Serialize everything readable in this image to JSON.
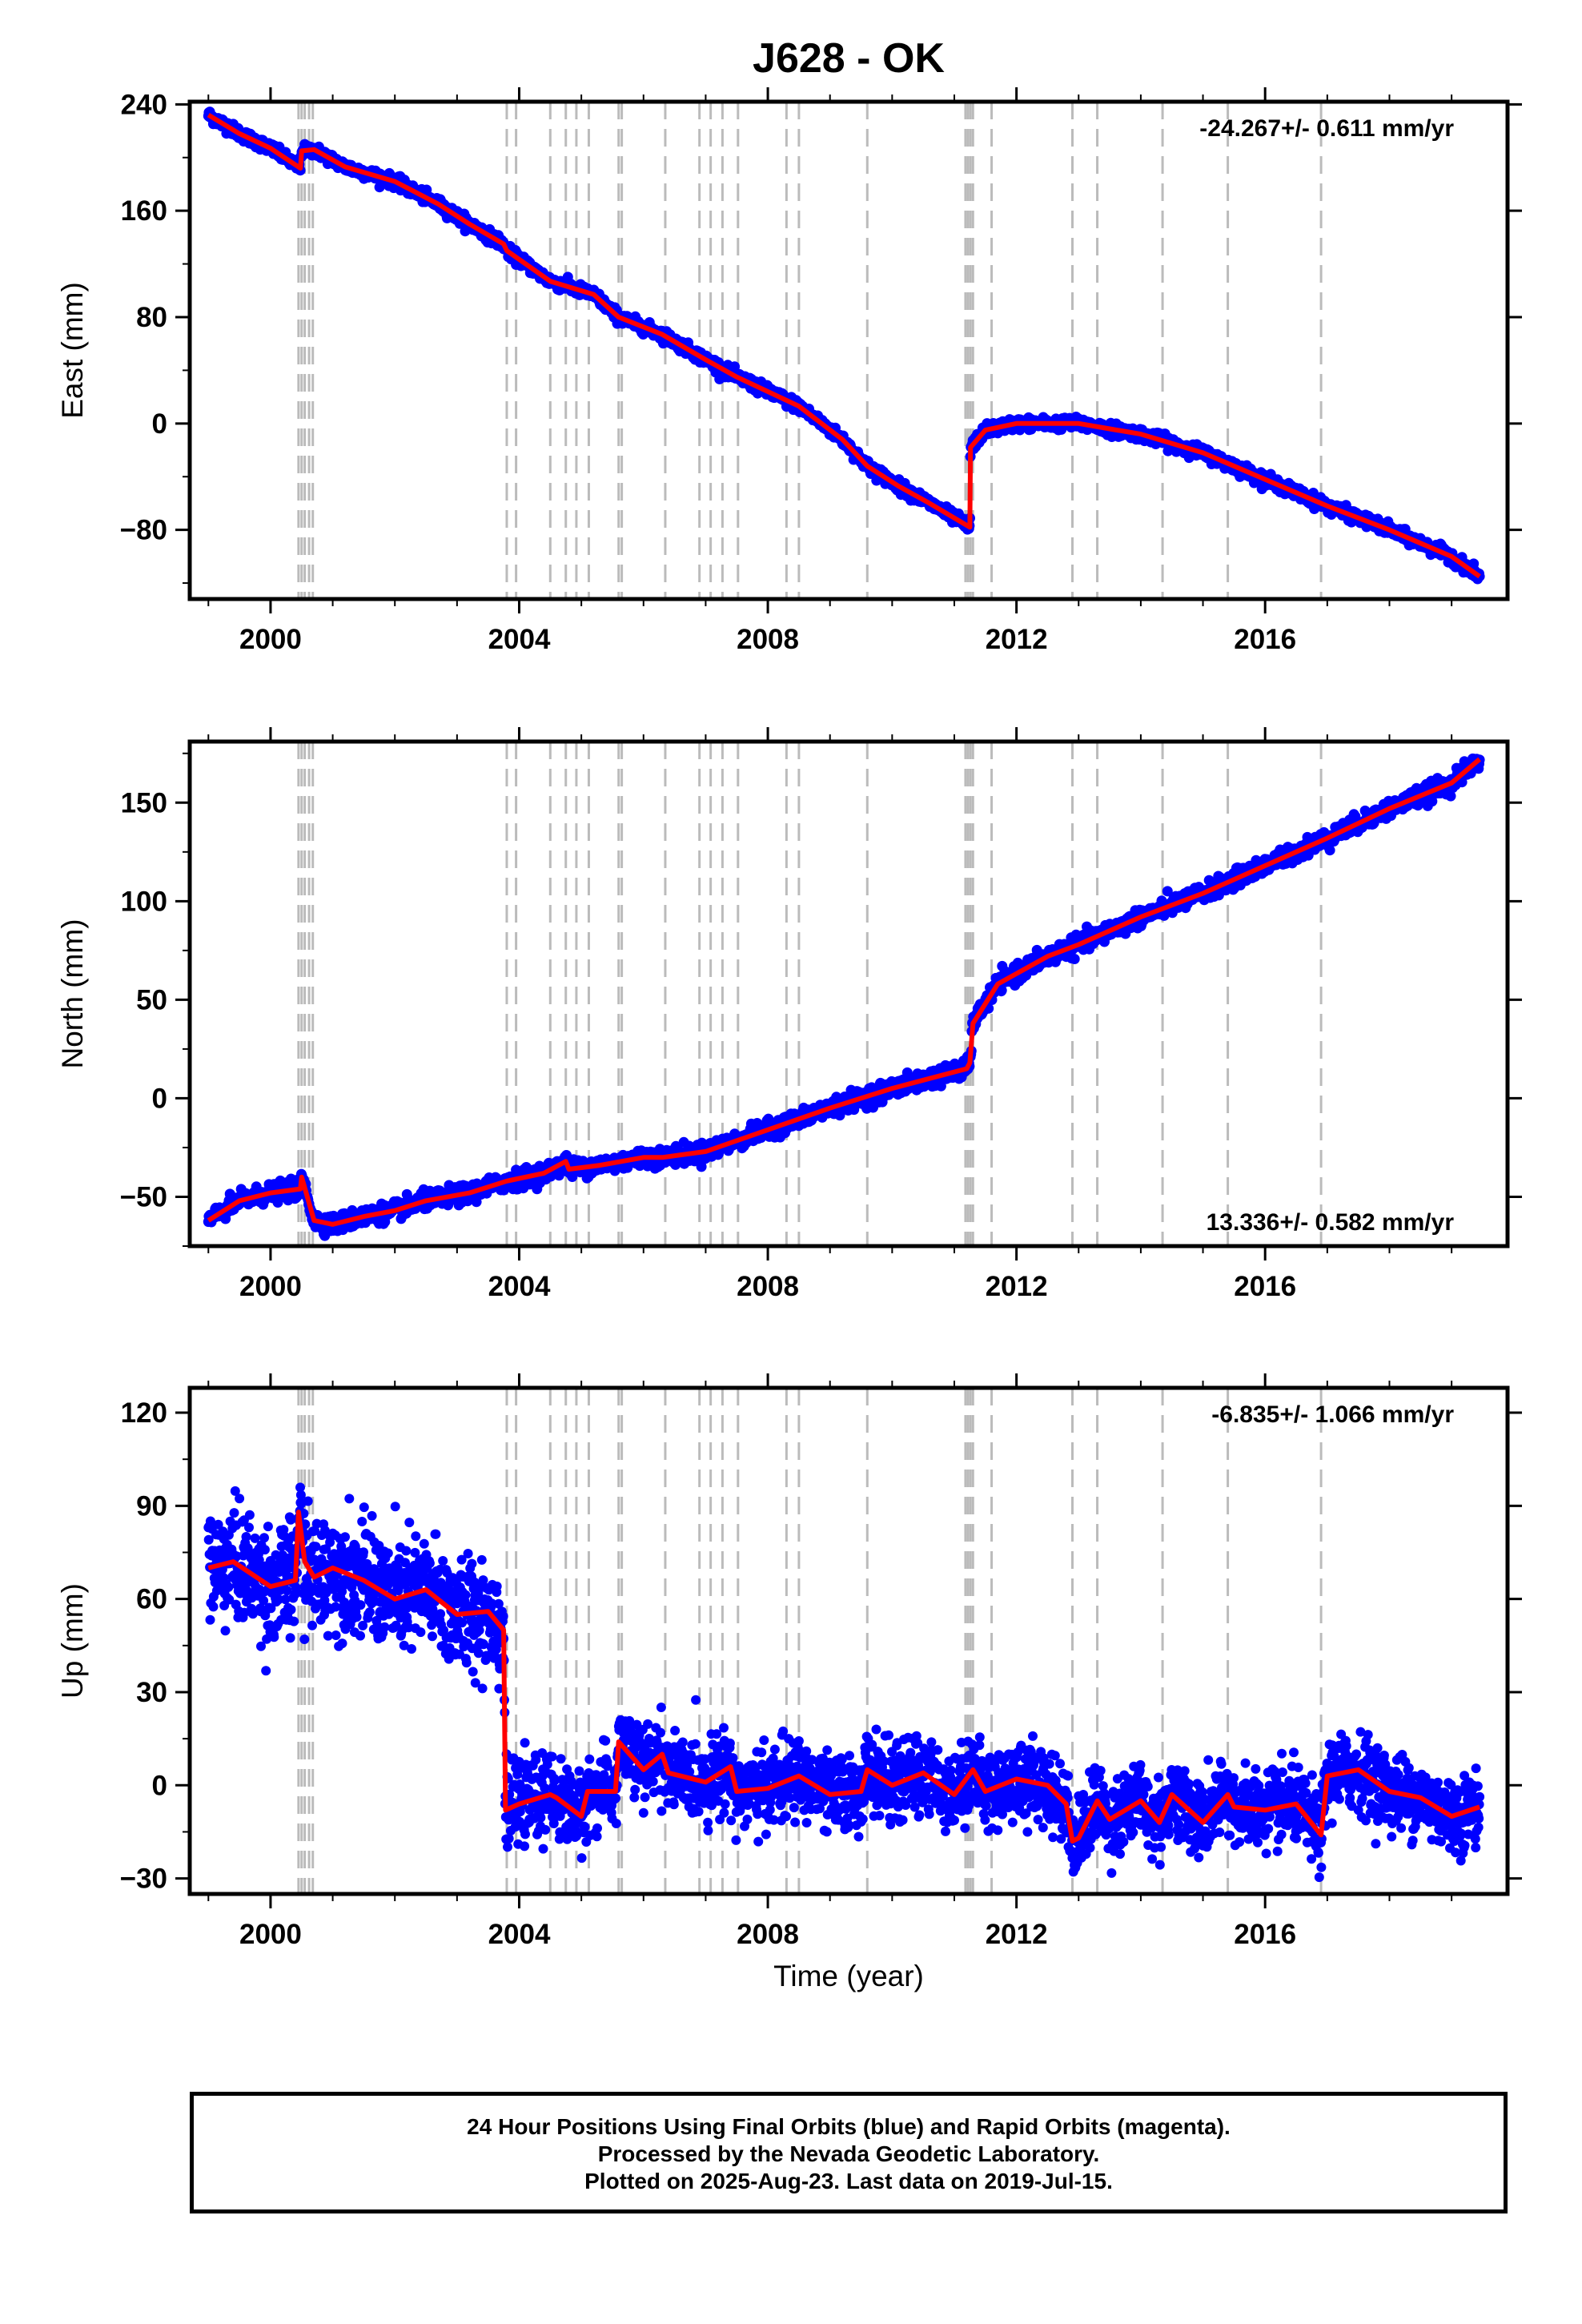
{
  "title": "J628 - OK",
  "xlabel": "Time (year)",
  "footer": {
    "line1": "24 Hour Positions Using Final Orbits (blue) and Rapid Orbits (magenta).",
    "line2": "Processed by the Nevada Geodetic Laboratory.",
    "line3": "Plotted on 2025-Aug-23. Last data on 2019-Jul-15."
  },
  "colors": {
    "final": "#0000ff",
    "rapid": "#ff00ff",
    "model": "#ff0000",
    "event_lines": "#bbbbbb"
  },
  "chart_data": [
    {
      "type": "scatter",
      "component": "East",
      "ylabel": "East (mm)",
      "rate_label": "-24.267+/- 0.611 mm/yr",
      "rate_position": "top-right",
      "xlim": [
        1998.7,
        2019.9
      ],
      "ylim": [
        -132,
        242
      ],
      "yticks": [
        -80,
        0,
        80,
        160,
        240
      ],
      "yticklabels": [
        "−80",
        "0",
        "80",
        "160",
        "240"
      ],
      "xticks": [
        2000,
        2004,
        2008,
        2012,
        2016
      ],
      "model_series": {
        "name": "model",
        "x": [
          1999.0,
          1999.5,
          2000.0,
          2000.48,
          2000.5,
          2000.7,
          2001.2,
          2002.0,
          2002.7,
          2003.2,
          2003.75,
          2003.8,
          2004.5,
          2005.2,
          2005.6,
          2006.3,
          2007.0,
          2007.5,
          2008.5,
          2009.2,
          2009.6,
          2010.1,
          2010.6,
          2011.25,
          2011.26,
          2011.5,
          2012.0,
          2012.5,
          2013.0,
          2013.5,
          2014.0,
          2015.0,
          2016.0,
          2017.0,
          2018.0,
          2019.0,
          2019.45
        ],
        "y": [
          232,
          218,
          207,
          192,
          205,
          206,
          193,
          182,
          165,
          150,
          135,
          130,
          107,
          97,
          80,
          67,
          48,
          35,
          13,
          -12,
          -32,
          -47,
          -60,
          -78,
          -18,
          -5,
          0,
          0,
          0,
          -4,
          -8,
          -22,
          -42,
          -62,
          -80,
          -100,
          -115
        ]
      },
      "final_orbits": {
        "name": "Final Orbits",
        "color": "#0000ff"
      }
    },
    {
      "type": "scatter",
      "component": "North",
      "ylabel": "North (mm)",
      "rate_label": "13.336+/- 0.582 mm/yr",
      "rate_position": "bottom-right",
      "xlim": [
        1998.7,
        2019.9
      ],
      "ylim": [
        -75,
        181
      ],
      "yticks": [
        -50,
        0,
        50,
        100,
        150
      ],
      "yticklabels": [
        "−50",
        "0",
        "50",
        "100",
        "150"
      ],
      "xticks": [
        2000,
        2004,
        2008,
        2012,
        2016
      ],
      "model_series": {
        "name": "model",
        "x": [
          1999.0,
          1999.5,
          2000.0,
          2000.48,
          2000.5,
          2000.7,
          2001.0,
          2001.5,
          2002.0,
          2002.5,
          2003.2,
          2003.8,
          2004.4,
          2004.75,
          2004.8,
          2005.3,
          2006.0,
          2006.3,
          2007.0,
          2008.0,
          2009.0,
          2010.0,
          2011.2,
          2011.25,
          2011.3,
          2011.7,
          2012.5,
          2013.0,
          2014.0,
          2015.0,
          2016.0,
          2017.0,
          2018.0,
          2019.0,
          2019.45
        ],
        "y": [
          -62,
          -52,
          -48,
          -46,
          -40,
          -62,
          -64,
          -60,
          -57,
          -52,
          -48,
          -42,
          -38,
          -32,
          -36,
          -34,
          -30,
          -30,
          -27,
          -16,
          -5,
          5,
          15,
          18,
          38,
          58,
          72,
          78,
          92,
          104,
          118,
          132,
          147,
          160,
          172
        ]
      },
      "final_orbits": {
        "name": "Final Orbits",
        "color": "#0000ff"
      }
    },
    {
      "type": "scatter",
      "component": "Up",
      "ylabel": "Up (mm)",
      "rate_label": "-6.835+/- 1.066 mm/yr",
      "rate_position": "top-right",
      "xlim": [
        1998.7,
        2019.9
      ],
      "ylim": [
        -35,
        128
      ],
      "yticks": [
        -30,
        0,
        30,
        60,
        90,
        120
      ],
      "yticklabels": [
        "−30",
        "0",
        "30",
        "60",
        "90",
        "120"
      ],
      "xticks": [
        2000,
        2004,
        2008,
        2012,
        2016
      ],
      "model_series": {
        "name": "model",
        "x": [
          1999.0,
          1999.4,
          1999.7,
          2000.0,
          2000.4,
          2000.45,
          2000.55,
          2000.7,
          2001.0,
          2001.5,
          2002.0,
          2002.5,
          2003.0,
          2003.5,
          2003.75,
          2003.78,
          2004.0,
          2004.5,
          2004.6,
          2005.0,
          2005.1,
          2005.55,
          2005.6,
          2006.0,
          2006.3,
          2006.4,
          2007.0,
          2007.4,
          2007.5,
          2008.0,
          2008.5,
          2009.0,
          2009.5,
          2009.6,
          2010.0,
          2010.5,
          2011.0,
          2011.3,
          2011.5,
          2012.0,
          2012.5,
          2012.8,
          2012.9,
          2013.0,
          2013.3,
          2013.5,
          2014.0,
          2014.3,
          2014.5,
          2015.0,
          2015.4,
          2015.5,
          2016.0,
          2016.5,
          2016.9,
          2017.0,
          2017.5,
          2018.0,
          2018.5,
          2019.0,
          2019.45
        ],
        "y": [
          70,
          72,
          68,
          64,
          66,
          88,
          72,
          67,
          70,
          66,
          60,
          63,
          55,
          56,
          50,
          -8,
          -6,
          -3,
          -4,
          -10,
          -2,
          -2,
          14,
          5,
          10,
          4,
          1,
          6,
          -2,
          -1,
          3,
          -3,
          -2,
          5,
          0,
          4,
          -3,
          5,
          -2,
          2,
          0,
          -6,
          -18,
          -17,
          -5,
          -11,
          -5,
          -12,
          -3,
          -12,
          -3,
          -7,
          -8,
          -6,
          -16,
          3,
          5,
          -2,
          -4,
          -10,
          -7
        ]
      },
      "final_orbits": {
        "name": "Final Orbits",
        "color": "#0000ff"
      }
    }
  ],
  "event_lines_x": [
    2000.45,
    2000.5,
    2000.55,
    2000.62,
    2000.68,
    2003.8,
    2003.95,
    2004.5,
    2004.75,
    2004.92,
    2005.12,
    2005.6,
    2005.65,
    2006.35,
    2006.9,
    2007.08,
    2007.27,
    2007.52,
    2008.3,
    2008.5,
    2009.6,
    2011.18,
    2011.22,
    2011.26,
    2011.3,
    2011.6,
    2012.9,
    2013.3,
    2014.35,
    2015.4,
    2016.9
  ]
}
